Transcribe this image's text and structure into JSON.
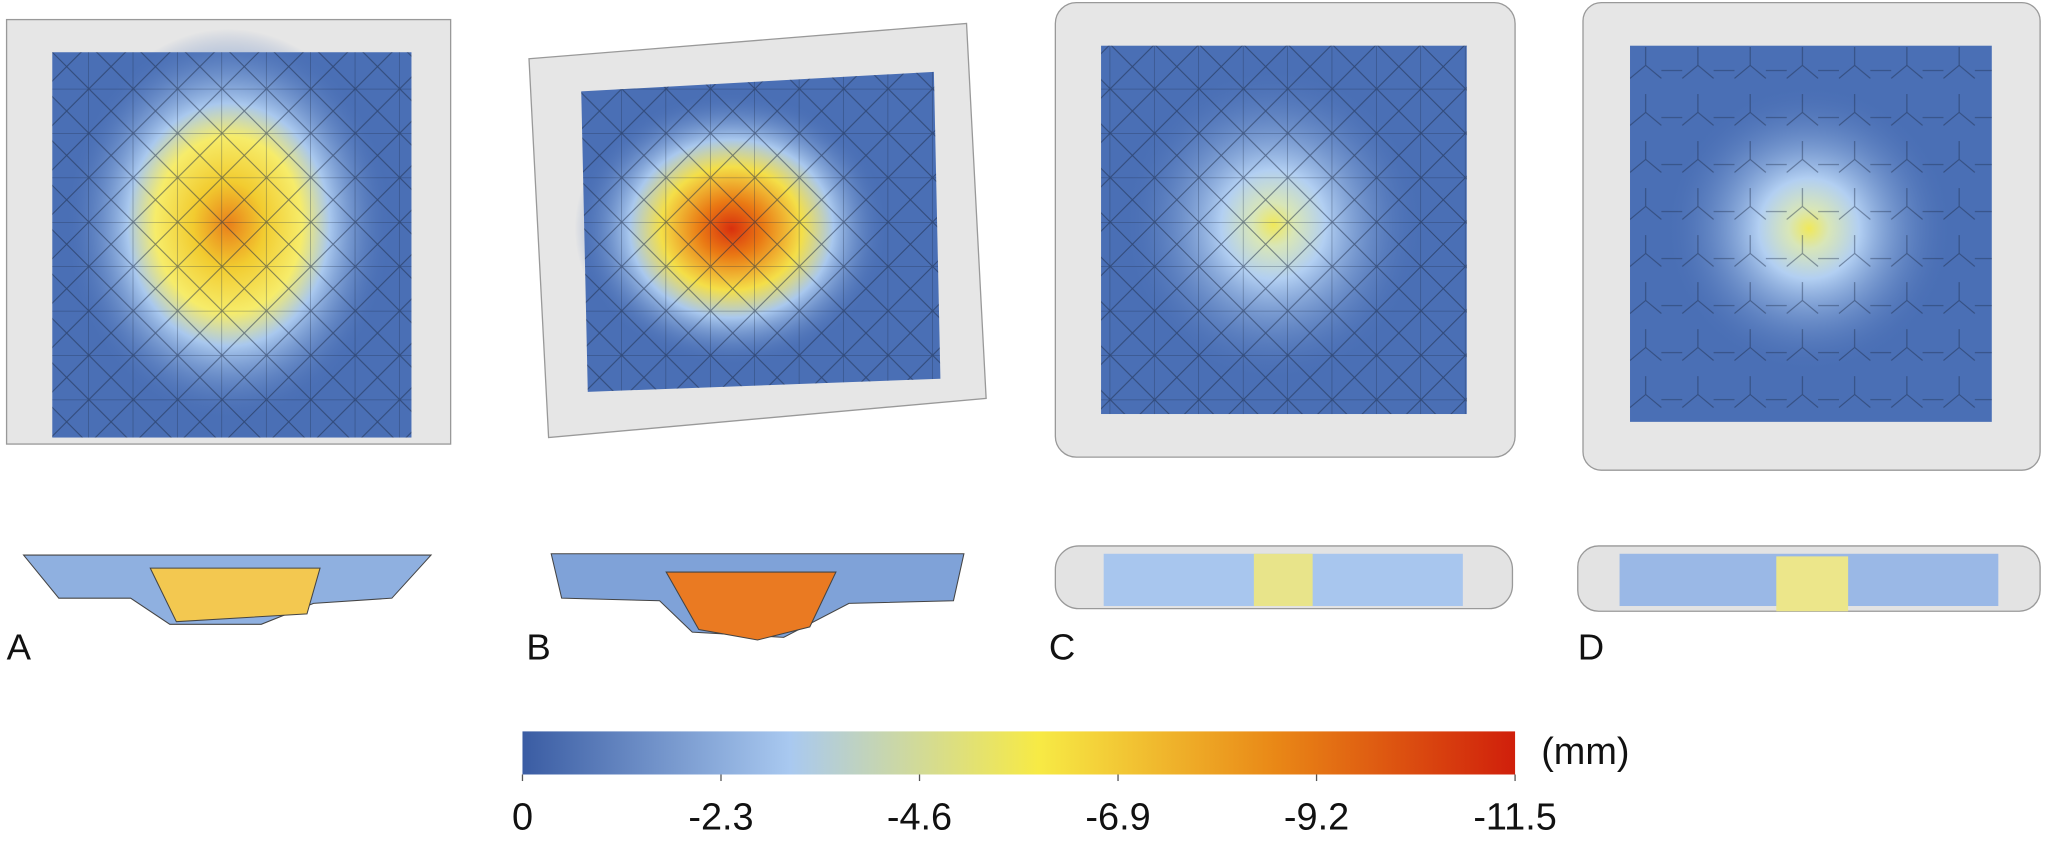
{
  "panels": [
    {
      "label": "A"
    },
    {
      "label": "B"
    },
    {
      "label": "C"
    },
    {
      "label": "D"
    }
  ],
  "colorbar": {
    "unit": "(mm)",
    "range": [
      0,
      -11.5
    ],
    "ticks": [
      0,
      -2.3,
      -4.6,
      -6.9,
      -9.2,
      -11.5
    ]
  }
}
